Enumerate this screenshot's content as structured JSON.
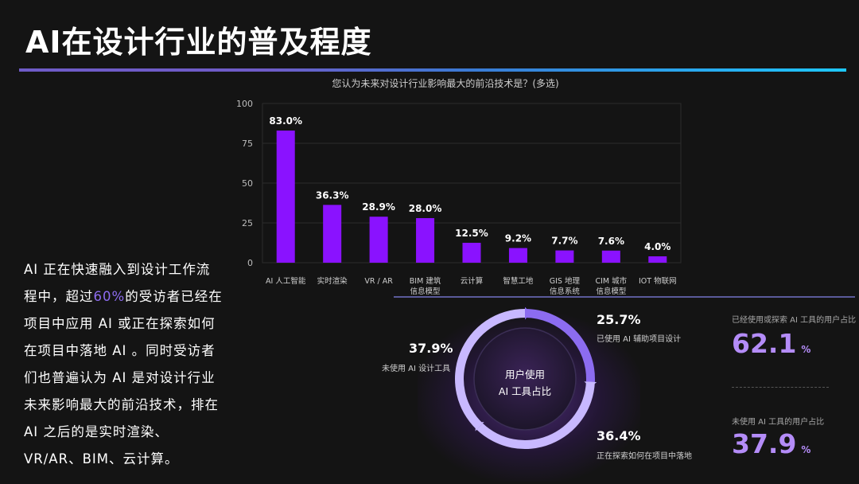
{
  "page": {
    "title": "AI在设计行业的普及程度"
  },
  "colors": {
    "bar": "#8a12ff",
    "accent_text": "#8d6cf0",
    "big_number": "#b48cf8",
    "ring_light": "#c8b8ff",
    "ring_mid": "#8c6cf0"
  },
  "body_text": {
    "part1": "AI 正在快速融入到设计工作流程中，超过",
    "highlight": "60%",
    "part2": "的受访者已经在项目中应用 AI 或正在探索如何在项目中落地 AI 。同时受访者们也普遍认为 AI 是对设计行业未来影响最大的前沿技术，排在 AI 之后的是实时渲染、VR/AR、BIM、云计算。"
  },
  "chart_data": [
    {
      "type": "bar",
      "title": "您认为未来对设计行业影响最大的前沿技术是？(多选)",
      "categories": [
        [
          "AI 人工智能"
        ],
        [
          "实时渲染"
        ],
        [
          "VR / AR"
        ],
        [
          "BIM 建筑",
          "信息模型"
        ],
        [
          "云计算"
        ],
        [
          "智慧工地"
        ],
        [
          "GIS 地理",
          "信息系统"
        ],
        [
          "CIM 城市",
          "信息模型"
        ],
        [
          "IOT 物联网"
        ]
      ],
      "values": [
        83.0,
        36.3,
        28.9,
        28.0,
        12.5,
        9.2,
        7.7,
        7.6,
        4.0
      ],
      "data_labels": [
        "83.0%",
        "36.3%",
        "28.9%",
        "28.0%",
        "12.5%",
        "9.2%",
        "7.7%",
        "7.6%",
        "4.0%"
      ],
      "ylim": [
        0,
        100
      ],
      "yticks": [
        "0",
        "25",
        "50",
        "75",
        "100"
      ],
      "ytick_values": [
        0,
        25,
        50,
        75,
        100
      ],
      "grid": true,
      "xlabel": "",
      "ylabel": ""
    },
    {
      "type": "pie",
      "center_label_line1": "用户使用",
      "center_label_line2": "AI 工具占比",
      "slices": [
        {
          "label": "已使用 AI 辅助项目设计",
          "value": 25.7,
          "display": "25.7%"
        },
        {
          "label": "正在探索如何在项目中落地",
          "value": 36.4,
          "display": "36.4%"
        },
        {
          "label": "未使用 AI 设计工具",
          "value": 37.9,
          "display": "37.9%"
        }
      ]
    }
  ],
  "summary": {
    "used_label": "已经使用或探索 AI 工具的用户占比",
    "used_value": "62.1",
    "unused_label": "未使用 AI 工具的用户占比",
    "unused_value": "37.9",
    "unit": "%"
  }
}
